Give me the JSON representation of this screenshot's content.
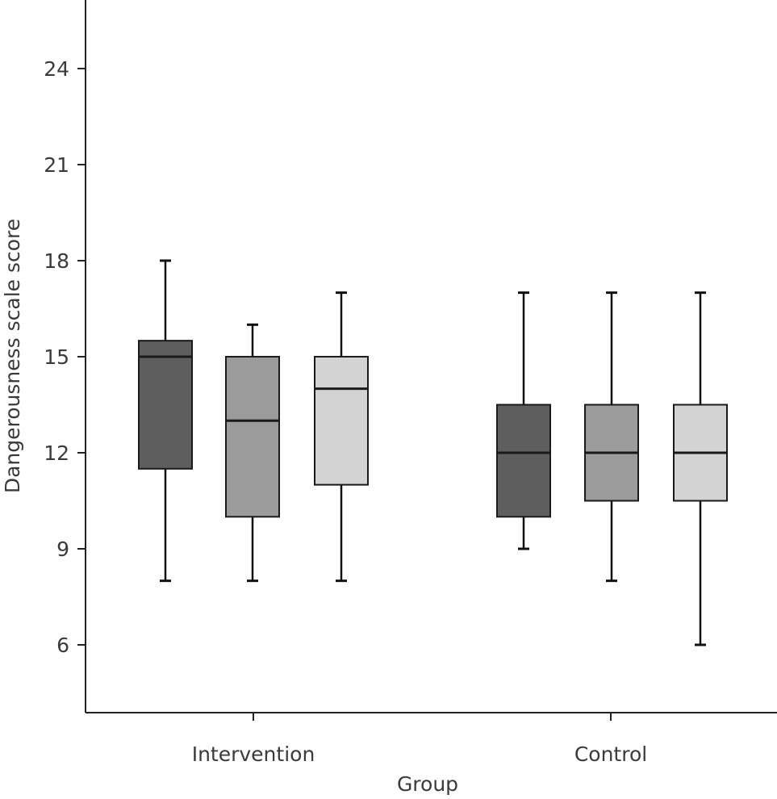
{
  "chart_data": {
    "type": "boxplot",
    "xlabel": "Group",
    "ylabel": "Dangerousness scale score",
    "ylim": [
      3,
      26.5
    ],
    "yticks": [
      6,
      9,
      12,
      15,
      18,
      21,
      24
    ],
    "categories": [
      "Intervention",
      "Control"
    ],
    "grid": false,
    "legend": "none",
    "box_colors": [
      "#5e5e5e",
      "#9b9b9b",
      "#d3d3d3"
    ],
    "groups": [
      {
        "category": "Intervention",
        "boxes": [
          {
            "min": 8,
            "q1": 11.5,
            "median": 15,
            "q3": 15.5,
            "max": 18
          },
          {
            "min": 8,
            "q1": 10,
            "median": 13,
            "q3": 15,
            "max": 16
          },
          {
            "min": 8,
            "q1": 11,
            "median": 14,
            "q3": 15,
            "max": 17
          }
        ]
      },
      {
        "category": "Control",
        "boxes": [
          {
            "min": 9,
            "q1": 10,
            "median": 12,
            "q3": 13.5,
            "max": 17
          },
          {
            "min": 8,
            "q1": 10.5,
            "median": 12,
            "q3": 13.5,
            "max": 17
          },
          {
            "min": 6,
            "q1": 10.5,
            "median": 12,
            "q3": 13.5,
            "max": 17
          }
        ]
      }
    ]
  }
}
